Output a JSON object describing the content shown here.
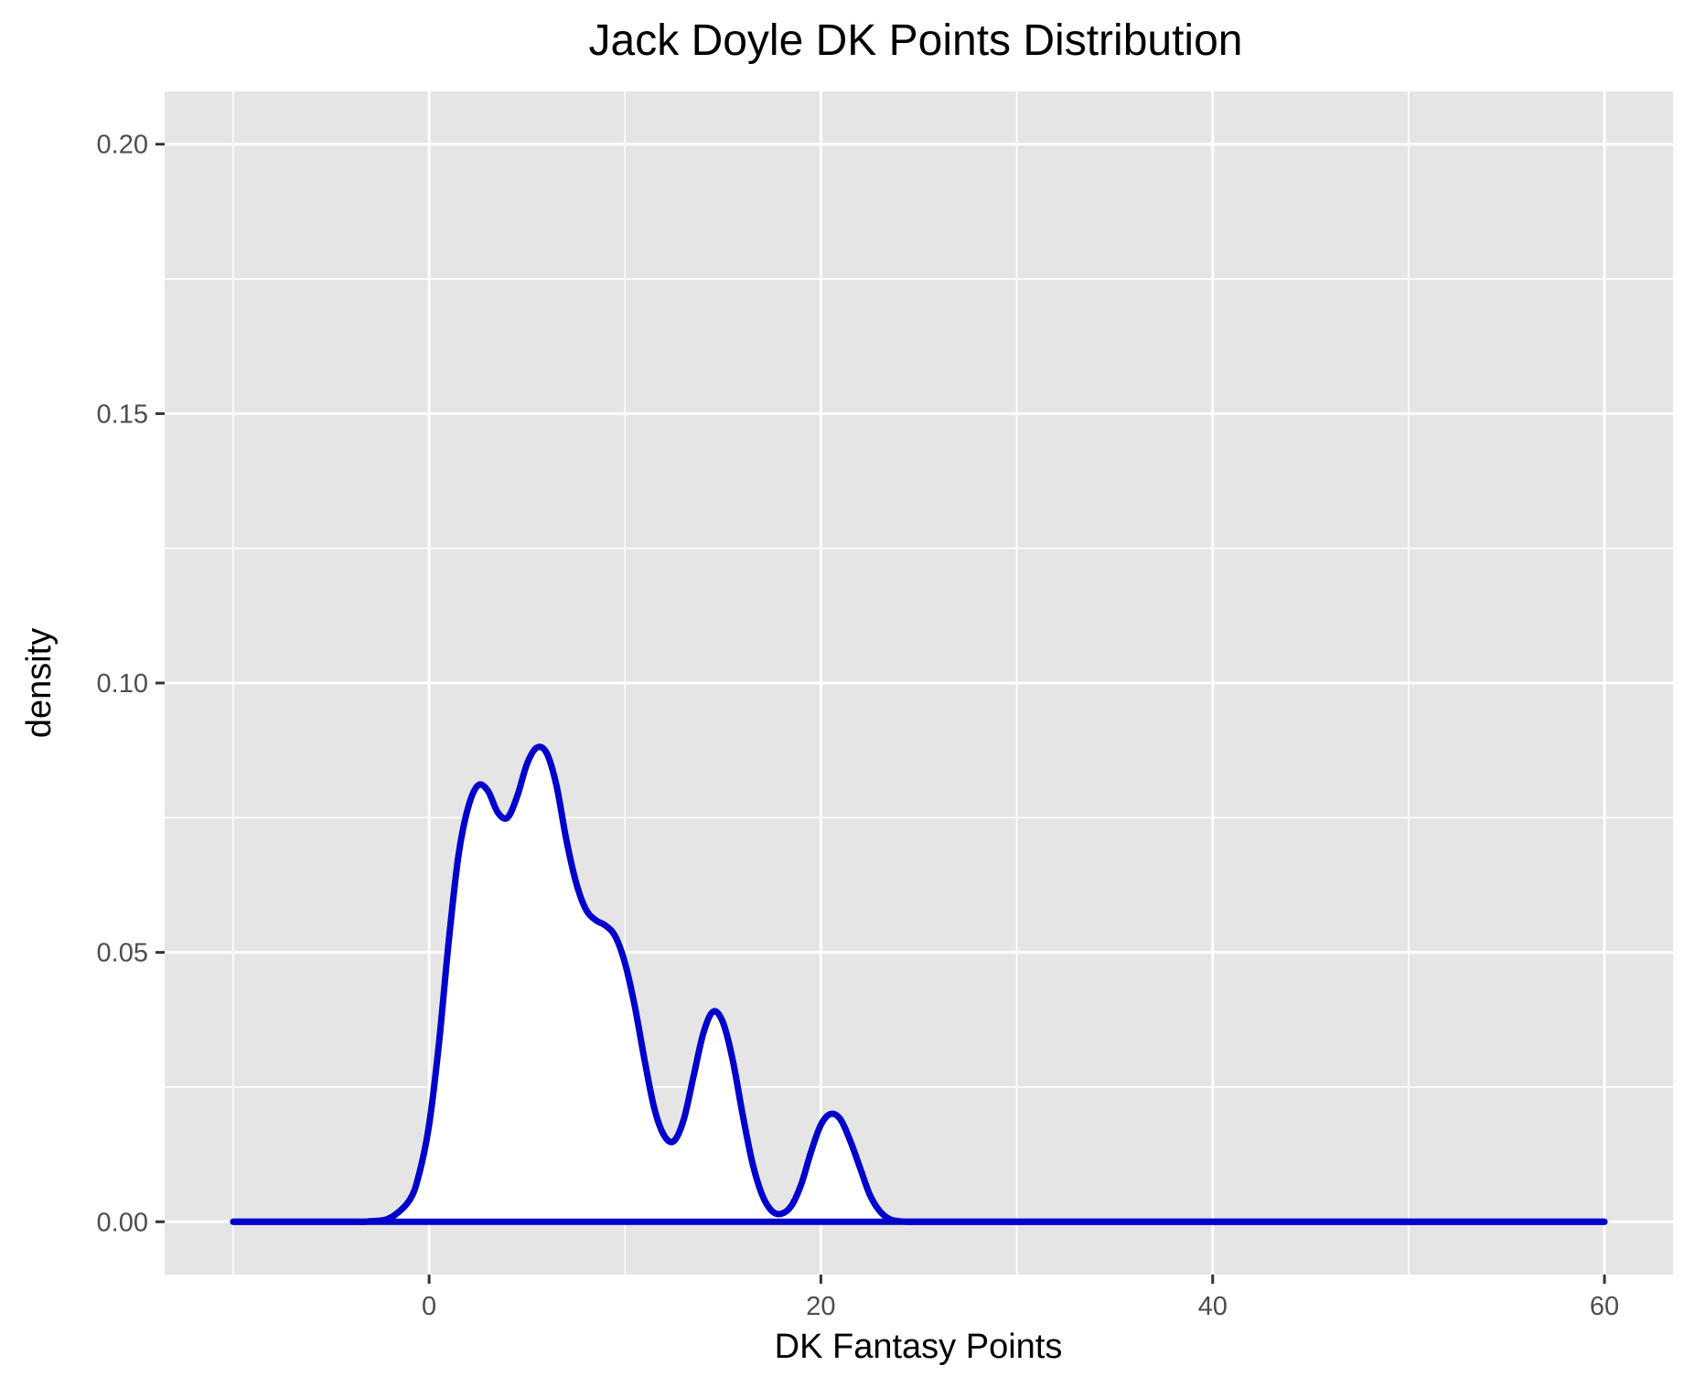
{
  "chart_data": {
    "type": "area",
    "title": "Jack Doyle DK Points Distribution",
    "xlabel": "DK Fantasy Points",
    "ylabel": "density",
    "xlim": [
      -13.5,
      63.5
    ],
    "ylim": [
      -0.0098,
      0.2098
    ],
    "x_ticks": [
      0,
      20,
      40,
      60
    ],
    "x_tick_labels": [
      "0",
      "20",
      "40",
      "60"
    ],
    "y_ticks": [
      0.0,
      0.05,
      0.1,
      0.15,
      0.2
    ],
    "y_tick_labels": [
      "0.00",
      "0.05",
      "0.10",
      "0.15",
      "0.20"
    ],
    "grid": true,
    "legend": "none",
    "colors": {
      "panel": "#e5e5e5",
      "grid": "#ffffff",
      "line": "#0000cc",
      "fill": "#ffffff",
      "tick": "#333333"
    },
    "series": [
      {
        "x": [
          -10,
          -4,
          -3,
          -2,
          -1,
          -0.5,
          0,
          0.5,
          1,
          1.5,
          2,
          2.5,
          3,
          3.5,
          4,
          4.5,
          5,
          5.5,
          6,
          6.5,
          7,
          7.5,
          8,
          8.5,
          9,
          9.5,
          10,
          10.5,
          11,
          11.5,
          12,
          12.5,
          13,
          13.5,
          14,
          14.5,
          15,
          15.5,
          16,
          16.5,
          17,
          17.5,
          18,
          18.5,
          19,
          19.5,
          20,
          20.5,
          21,
          21.5,
          22,
          22.5,
          23,
          23.5,
          24,
          24.5,
          25,
          25.5,
          26,
          27,
          28,
          30,
          60
        ],
        "y": [
          0,
          0,
          0.0001,
          0.0007,
          0.004,
          0.009,
          0.018,
          0.033,
          0.052,
          0.068,
          0.077,
          0.081,
          0.08,
          0.076,
          0.075,
          0.079,
          0.085,
          0.088,
          0.087,
          0.081,
          0.071,
          0.063,
          0.058,
          0.056,
          0.055,
          0.053,
          0.048,
          0.04,
          0.03,
          0.021,
          0.016,
          0.015,
          0.019,
          0.027,
          0.035,
          0.039,
          0.037,
          0.03,
          0.02,
          0.011,
          0.005,
          0.002,
          0.0015,
          0.003,
          0.007,
          0.013,
          0.018,
          0.02,
          0.019,
          0.015,
          0.01,
          0.005,
          0.002,
          0.0005,
          0.0001,
          0,
          0,
          0,
          0,
          0,
          0,
          0,
          0
        ]
      }
    ]
  }
}
